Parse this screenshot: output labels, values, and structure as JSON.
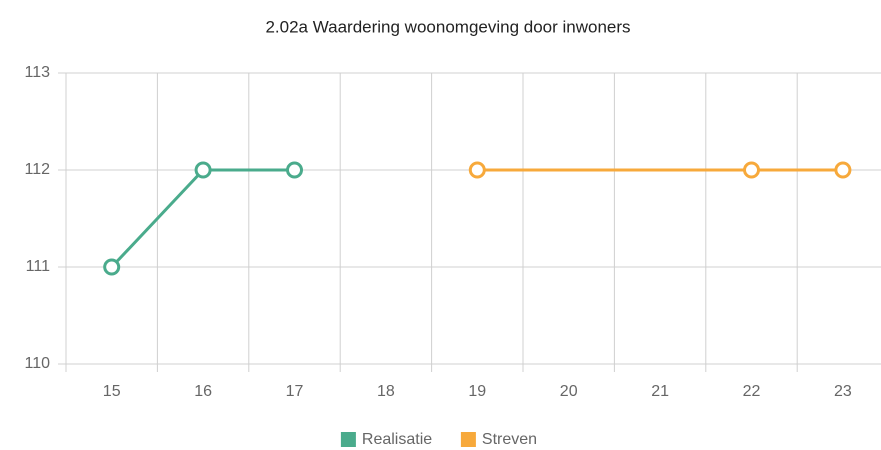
{
  "chart_data": {
    "type": "line",
    "title": "2.02a Waardering woonomgeving door inwoners",
    "categories": [
      15,
      16,
      17,
      18,
      19,
      20,
      21,
      22,
      23
    ],
    "series": [
      {
        "name": "Realisatie",
        "color": "#4aab8c",
        "values": [
          111,
          112,
          112,
          null,
          null,
          null,
          null,
          null,
          null
        ]
      },
      {
        "name": "Streven",
        "color": "#f7a93b",
        "values": [
          null,
          null,
          null,
          null,
          112,
          null,
          null,
          112,
          112
        ]
      }
    ],
    "span_gaps": true,
    "ylim": [
      110,
      113
    ],
    "yticks": [
      110,
      111,
      112,
      113
    ],
    "grid": true,
    "legend": "bottom"
  }
}
